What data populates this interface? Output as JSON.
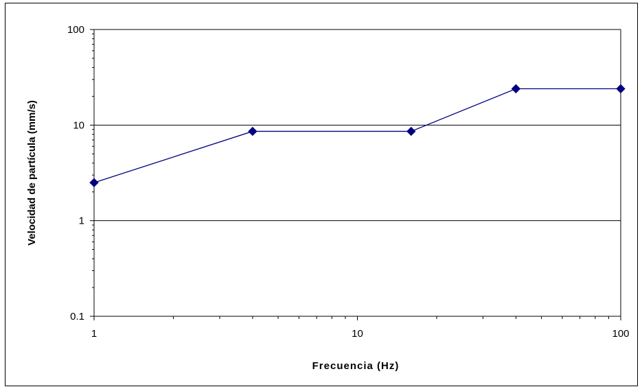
{
  "chart_data": {
    "type": "line",
    "title": "",
    "xlabel": "Frecuencia (Hz)",
    "ylabel": "Velocidad de partícula (mm/s)",
    "x_scale": "log",
    "y_scale": "log",
    "xlim": [
      1,
      100
    ],
    "ylim": [
      0.1,
      100
    ],
    "x_ticks": [
      "1",
      "10",
      "100"
    ],
    "y_ticks": [
      "0.1",
      "1",
      "10",
      "100"
    ],
    "grid": "horizontal major gridlines",
    "legend": "none",
    "series": [
      {
        "color": "#000080",
        "marker": "diamond",
        "points": [
          {
            "x": 1,
            "y": 2.5
          },
          {
            "x": 4,
            "y": 8.6
          },
          {
            "x": 16,
            "y": 8.6
          },
          {
            "x": 40,
            "y": 24
          },
          {
            "x": 100,
            "y": 24
          }
        ]
      }
    ]
  }
}
